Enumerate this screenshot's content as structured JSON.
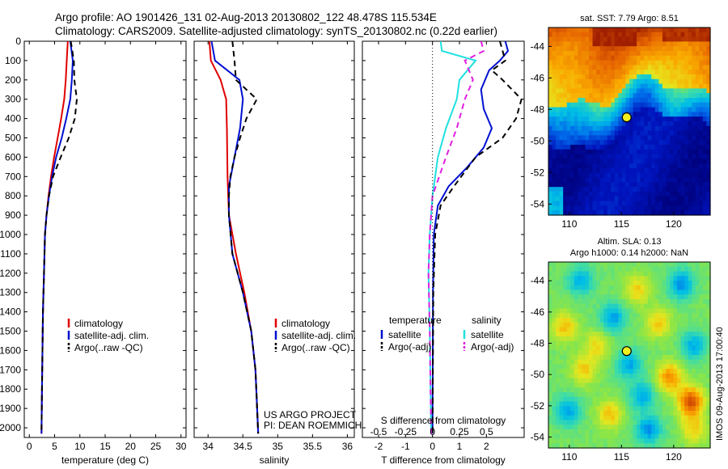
{
  "header": {
    "line1": "Argo profile: AO 1901426_131 02-Aug-2013 20130802_122 48.478S 115.534E",
    "line2": "Climatology: CARS2009. Satellite-adjusted climatology: synTS_20130802.nc (0.22d earlier)"
  },
  "colors": {
    "climatology": "#e00000",
    "satellite": "#0010d0",
    "argo": "#000000",
    "salinity_satellite": "#20e0e0",
    "salinity_argo": "#e020e0"
  },
  "chart_data": [
    {
      "type": "line",
      "name": "temperature-panel",
      "xlabel": "temperature (deg C)",
      "ylabel": "",
      "xlim": [
        -1,
        31
      ],
      "ylim": [
        2050,
        0
      ],
      "xticks": [
        "0",
        "5",
        "10",
        "15",
        "20",
        "25",
        "30"
      ],
      "yticks": [
        "0",
        "100",
        "200",
        "300",
        "400",
        "500",
        "600",
        "700",
        "800",
        "900",
        "1000",
        "1100",
        "1200",
        "1300",
        "1400",
        "1500",
        "1600",
        "1700",
        "1800",
        "1900",
        "2000"
      ],
      "legend": [
        "climatology",
        "satellite-adj. clim.",
        "Argo(..raw -QC)"
      ],
      "series": [
        {
          "name": "climatology",
          "style": "solid",
          "color": "climatology",
          "points": [
            [
              7.6,
              0
            ],
            [
              7.4,
              100
            ],
            [
              7.2,
              200
            ],
            [
              6.9,
              300
            ],
            [
              6.3,
              400
            ],
            [
              5.6,
              500
            ],
            [
              4.9,
              600
            ],
            [
              4.3,
              700
            ],
            [
              3.8,
              800
            ],
            [
              3.4,
              900
            ],
            [
              3.1,
              1000
            ],
            [
              2.9,
              1200
            ],
            [
              2.7,
              1400
            ],
            [
              2.6,
              1600
            ],
            [
              2.5,
              1800
            ],
            [
              2.4,
              2030
            ]
          ]
        },
        {
          "name": "satellite-adj. clim.",
          "style": "solid",
          "color": "satellite",
          "points": [
            [
              8.1,
              0
            ],
            [
              8.6,
              100
            ],
            [
              8.4,
              200
            ],
            [
              8.1,
              300
            ],
            [
              7.3,
              400
            ],
            [
              6.4,
              500
            ],
            [
              5.3,
              600
            ],
            [
              4.5,
              700
            ],
            [
              3.9,
              800
            ],
            [
              3.4,
              900
            ],
            [
              3.1,
              1000
            ],
            [
              2.9,
              1200
            ],
            [
              2.7,
              1400
            ],
            [
              2.6,
              1600
            ],
            [
              2.5,
              1800
            ],
            [
              2.4,
              2030
            ]
          ]
        },
        {
          "name": "Argo(..raw -QC)",
          "style": "dashed",
          "color": "argo",
          "points": [
            [
              8.2,
              0
            ],
            [
              8.8,
              100
            ],
            [
              8.9,
              200
            ],
            [
              9.4,
              300
            ],
            [
              9.0,
              400
            ],
            [
              7.8,
              500
            ],
            [
              6.2,
              600
            ],
            [
              4.7,
              700
            ],
            [
              3.9,
              800
            ],
            [
              3.4,
              900
            ],
            [
              3.1,
              1000
            ],
            [
              2.9,
              1200
            ],
            [
              2.7,
              1400
            ],
            [
              2.6,
              1600
            ],
            [
              2.5,
              1800
            ],
            [
              2.4,
              2030
            ]
          ]
        }
      ]
    },
    {
      "type": "line",
      "name": "salinity-panel",
      "xlabel": "salinity",
      "ylabel": "",
      "xlim": [
        33.8,
        36.1
      ],
      "ylim": [
        2050,
        0
      ],
      "xticks": [
        "34",
        "34.5",
        "35",
        "35.5",
        "36"
      ],
      "legend": [
        "climatology",
        "satellite-adj. clim.",
        "Argo(..raw -QC)"
      ],
      "credits": [
        "US ARGO PROJECT",
        "PI: DEAN ROEMMICH"
      ],
      "series": [
        {
          "name": "climatology",
          "style": "solid",
          "color": "climatology",
          "points": [
            [
              34.02,
              0
            ],
            [
              34.04,
              100
            ],
            [
              34.18,
              200
            ],
            [
              34.26,
              300
            ],
            [
              34.27,
              450
            ],
            [
              34.28,
              700
            ],
            [
              34.3,
              900
            ],
            [
              34.4,
              1100
            ],
            [
              34.52,
              1300
            ],
            [
              34.62,
              1500
            ],
            [
              34.68,
              1700
            ],
            [
              34.72,
              2030
            ]
          ]
        },
        {
          "name": "satellite-adj. clim.",
          "style": "solid",
          "color": "satellite",
          "points": [
            [
              34.05,
              0
            ],
            [
              34.1,
              100
            ],
            [
              34.45,
              200
            ],
            [
              34.5,
              300
            ],
            [
              34.46,
              450
            ],
            [
              34.38,
              600
            ],
            [
              34.3,
              750
            ],
            [
              34.3,
              900
            ],
            [
              34.35,
              1100
            ],
            [
              34.5,
              1300
            ],
            [
              34.62,
              1500
            ],
            [
              34.68,
              1700
            ],
            [
              34.72,
              2030
            ]
          ]
        },
        {
          "name": "Argo(..raw -QC)",
          "style": "dashed",
          "color": "argo",
          "points": [
            [
              34.35,
              0
            ],
            [
              34.38,
              100
            ],
            [
              34.4,
              200
            ],
            [
              34.7,
              300
            ],
            [
              34.55,
              400
            ],
            [
              34.46,
              500
            ],
            [
              34.38,
              600
            ],
            [
              34.32,
              700
            ],
            [
              34.3,
              800
            ],
            [
              34.3,
              900
            ],
            [
              34.35,
              1100
            ],
            [
              34.5,
              1300
            ],
            [
              34.62,
              1500
            ],
            [
              34.68,
              1700
            ],
            [
              34.72,
              2030
            ]
          ]
        }
      ]
    },
    {
      "type": "line",
      "name": "difference-panel",
      "xlabel": "T difference from climatology",
      "xlabel2": "S difference from climatology",
      "ylabel": "",
      "xlim": [
        -2.6,
        3.4
      ],
      "ylim": [
        2050,
        0
      ],
      "xticks": [
        "-2",
        "-1",
        "0",
        "1",
        "2"
      ],
      "xticks_top": [
        "-0.5",
        "-0.25",
        "0",
        "0.25",
        "0.5"
      ],
      "legend_headers": [
        "temperature",
        "salinity"
      ],
      "legend": [
        "satellite",
        "Argo(-adj)",
        "satellite",
        "Argo(-adj)"
      ],
      "series": [
        {
          "name": "satellite",
          "group": "temperature",
          "style": "solid",
          "color": "satellite",
          "points": [
            [
              2.7,
              0
            ],
            [
              2.8,
              50
            ],
            [
              2.5,
              100
            ],
            [
              2.1,
              150
            ],
            [
              1.8,
              250
            ],
            [
              1.9,
              350
            ],
            [
              2.2,
              450
            ],
            [
              1.9,
              550
            ],
            [
              1.3,
              650
            ],
            [
              0.6,
              750
            ],
            [
              0.2,
              850
            ],
            [
              0.05,
              1000
            ],
            [
              0.02,
              1300
            ],
            [
              0.0,
              2030
            ]
          ]
        },
        {
          "name": "Argo(-adj)",
          "group": "temperature",
          "style": "dashed",
          "color": "argo",
          "points": [
            [
              2.5,
              0
            ],
            [
              2.7,
              100
            ],
            [
              2.2,
              150
            ],
            [
              2.6,
              200
            ],
            [
              3.3,
              300
            ],
            [
              3.1,
              400
            ],
            [
              2.6,
              500
            ],
            [
              1.6,
              600
            ],
            [
              0.8,
              750
            ],
            [
              0.3,
              850
            ],
            [
              0.1,
              1000
            ],
            [
              0.03,
              1300
            ],
            [
              0.0,
              2030
            ]
          ]
        },
        {
          "name": "satellite",
          "group": "salinity",
          "style": "solid",
          "color": "salinity_satellite",
          "points": [
            [
              0.3,
              0
            ],
            [
              0.35,
              50
            ],
            [
              1.6,
              100
            ],
            [
              1.0,
              200
            ],
            [
              0.9,
              300
            ],
            [
              0.5,
              450
            ],
            [
              0.2,
              600
            ],
            [
              0.0,
              800
            ],
            [
              -0.1,
              1000
            ],
            [
              -0.15,
              1200
            ],
            [
              -0.1,
              1500
            ],
            [
              -0.05,
              2030
            ]
          ]
        },
        {
          "name": "Argo(-adj)",
          "group": "salinity",
          "style": "dashed",
          "color": "salinity_argo",
          "points": [
            [
              1.8,
              0
            ],
            [
              1.9,
              50
            ],
            [
              1.2,
              100
            ],
            [
              1.5,
              200
            ],
            [
              1.2,
              300
            ],
            [
              0.9,
              450
            ],
            [
              0.5,
              600
            ],
            [
              0.0,
              800
            ],
            [
              -0.1,
              1000
            ],
            [
              -0.15,
              1200
            ],
            [
              -0.1,
              1500
            ],
            [
              -0.05,
              2030
            ]
          ]
        }
      ]
    },
    {
      "type": "heatmap",
      "name": "sst-map",
      "title": "sat. SST: 7.79 Argo: 8.51",
      "xlim": [
        108,
        123.5
      ],
      "ylim": [
        -54.7,
        -42.8
      ],
      "xticks": [
        "110",
        "115",
        "120"
      ],
      "yticks": [
        "-44",
        "-46",
        "-48",
        "-50",
        "-52",
        "-54"
      ],
      "marker": [
        115.5,
        -48.5
      ]
    },
    {
      "type": "heatmap",
      "name": "sla-map",
      "title": "Altim. SLA: 0.13",
      "title2": "Argo h1000: 0.14 h2000: NaN",
      "xlim": [
        108,
        123.5
      ],
      "ylim": [
        -54.7,
        -42.8
      ],
      "xticks": [
        "110",
        "115",
        "120"
      ],
      "yticks": [
        "-44",
        "-46",
        "-48",
        "-50",
        "-52",
        "-54"
      ],
      "marker": [
        115.5,
        -48.5
      ]
    }
  ],
  "watermark": "IMOS 09-Aug-2013 17:00:40"
}
